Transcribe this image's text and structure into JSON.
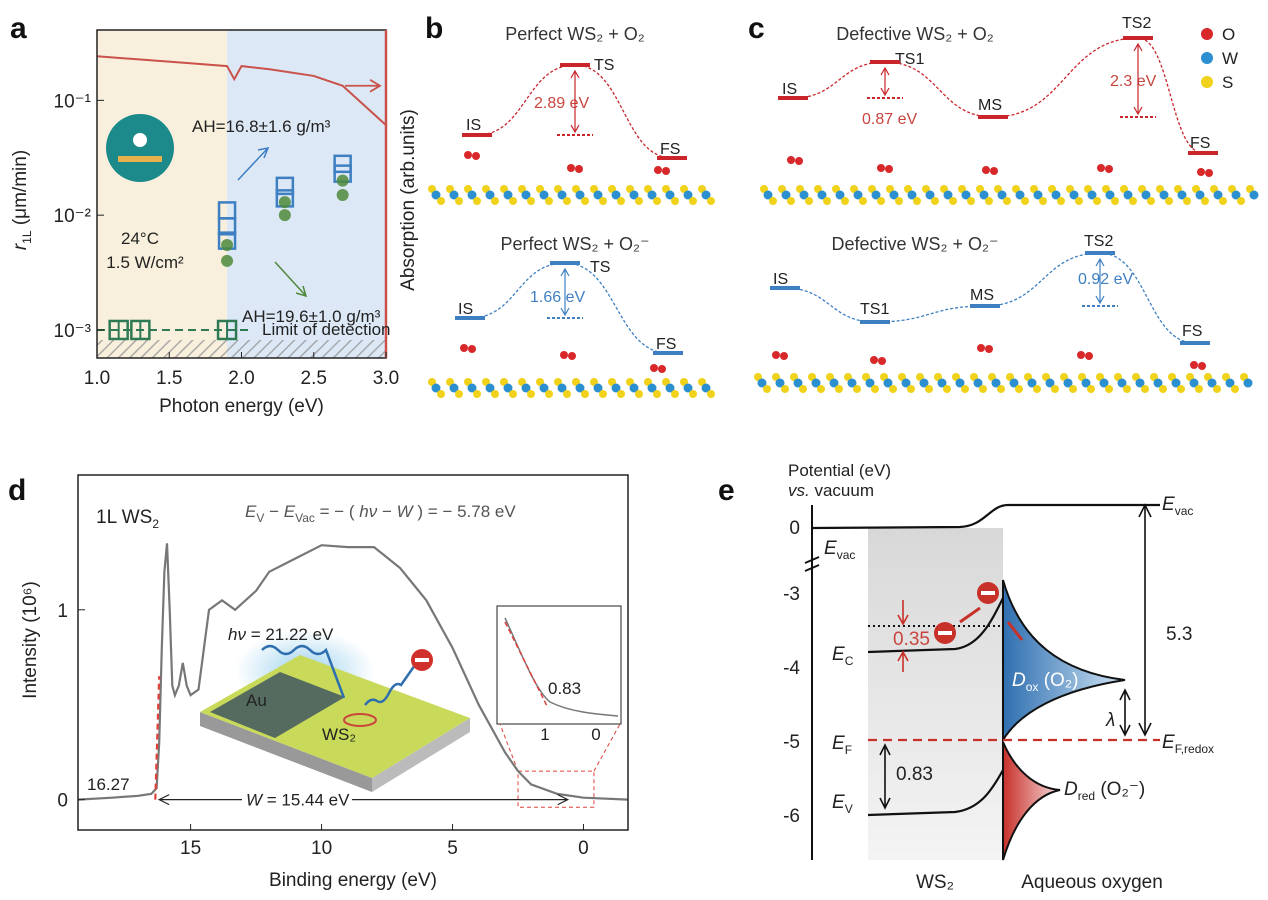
{
  "figure": {
    "panel_labels": [
      "a",
      "b",
      "c",
      "d",
      "e"
    ]
  },
  "chart_data": [
    {
      "type": "scatter",
      "x_label": "Photon energy (eV)",
      "y_label": [
        "r",
        "1L",
        " (μm/min)"
      ],
      "y2_label": "Absorption (arb.units)",
      "xlim": [
        1.0,
        3.0
      ],
      "xticks": [
        {
          "value": 1.0,
          "label": "1.0"
        },
        {
          "value": 1.5,
          "label": "1.5"
        },
        {
          "value": 2.0,
          "label": "2.0"
        },
        {
          "value": 2.5,
          "label": "2.5"
        },
        {
          "value": 3.0,
          "label": "3.0"
        }
      ],
      "log_y": true,
      "ylim": [
        0.00057,
        0.41
      ],
      "yticks": [
        {
          "value": 0.001,
          "label": "10⁻³"
        },
        {
          "value": 0.01,
          "label": "10⁻²"
        },
        {
          "value": 0.1,
          "label": "10⁻¹"
        }
      ],
      "y2lim": [
        0,
        1
      ],
      "shaded_regions": [
        {
          "from": 1.0,
          "to": 1.9,
          "color": "#f8f0dc"
        },
        {
          "from": 1.9,
          "to": 3.0,
          "color": "#dce8f6"
        }
      ],
      "series": [
        {
          "name": "AH=16.8±1.6 g/m³",
          "color": "#3e7fc2",
          "marker": "square",
          "x": [
            1.9,
            1.9,
            1.9,
            2.3,
            2.3,
            2.7,
            2.7
          ],
          "values": [
            0.011,
            0.008,
            0.006,
            0.018,
            0.014,
            0.028,
            0.023
          ]
        },
        {
          "name": "AH=19.6±1.0 g/m³",
          "color": "#4e8a3a",
          "marker": "circle",
          "x": [
            1.9,
            1.9,
            2.3,
            2.3,
            2.7,
            2.7
          ],
          "values": [
            0.0055,
            0.004,
            0.013,
            0.01,
            0.02,
            0.015
          ]
        },
        {
          "name": "Limit of detection",
          "color": "#2f7a55",
          "marker": "detection",
          "x": [
            1.15,
            1.3,
            1.9
          ],
          "values": [
            0.001,
            0.001,
            0.001
          ]
        },
        {
          "axis": "y2",
          "color": "#c9524a",
          "marker": "line",
          "x": [
            1.0,
            1.3,
            1.6,
            1.9,
            1.95,
            2.0,
            2.2,
            2.5,
            2.7,
            2.9,
            3.0
          ],
          "values": [
            0.92,
            0.91,
            0.9,
            0.89,
            0.85,
            0.89,
            0.88,
            0.86,
            0.83,
            0.75,
            0.71
          ]
        }
      ],
      "annotations": [
        "24°C",
        "1.5 W/cm²"
      ]
    },
    {
      "type": "line",
      "x_label": "Binding energy (eV)",
      "y_label": "Intensity (10⁶)",
      "xlim": [
        19.3,
        -1.7
      ],
      "xticks": [
        15,
        10,
        5,
        0
      ],
      "ylim": [
        -0.16,
        1.71
      ],
      "yticks": [
        0,
        1
      ],
      "series": [
        {
          "color": "#777777",
          "x": [
            19.3,
            18,
            17,
            16.5,
            16.3,
            16.2,
            16.1,
            16.0,
            15.9,
            15.8,
            15.7,
            15.6,
            15.45,
            15.3,
            15.15,
            15.0,
            14.7,
            14.3,
            13.8,
            13.3,
            12.5,
            12.0,
            11.0,
            10.0,
            9.0,
            8.0,
            7.0,
            6.0,
            5.0,
            4.0,
            3.0,
            2.5,
            2.0,
            1.0,
            0,
            -1.7
          ],
          "values": [
            0,
            0.01,
            0.02,
            0.03,
            0.06,
            0.3,
            0.8,
            1.2,
            1.35,
            1.0,
            0.6,
            0.55,
            0.6,
            0.72,
            0.6,
            0.55,
            0.58,
            1.0,
            1.05,
            1.0,
            1.1,
            1.2,
            1.27,
            1.34,
            1.33,
            1.33,
            1.22,
            1.05,
            0.8,
            0.5,
            0.25,
            0.15,
            0.08,
            0.03,
            0.01,
            0
          ]
        },
        {
          "color": "#e0413a",
          "dashed": true,
          "x": [
            16.35,
            16.2
          ],
          "values": [
            0,
            0.65
          ]
        }
      ],
      "annotations": {
        "sample": [
          "1L WS",
          "2"
        ],
        "equation": [
          "E",
          "V",
          " − ",
          "E",
          "Vac",
          " = − ( ",
          "hν",
          " − ",
          "W",
          " ) = − 5.78 eV"
        ],
        "cutoff": "16.27",
        "edge": "0.83",
        "width": [
          "W",
          " = 15.44 eV"
        ],
        "photon": [
          "hν",
          " = 21.22 eV"
        ],
        "au": "Au",
        "ws2": "WS₂",
        "inset_ticks": [
          "1",
          "0"
        ]
      }
    }
  ],
  "panel_b": {
    "top": {
      "title": "Perfect WS₂ + O₂",
      "states": [
        "IS",
        "TS",
        "FS"
      ],
      "barrier": "2.89 eV"
    },
    "bottom": {
      "title": "Perfect WS₂ + O₂⁻",
      "states": [
        "IS",
        "TS",
        "FS"
      ],
      "barrier": "1.66 eV"
    }
  },
  "panel_c": {
    "top": {
      "title": "Defective WS₂ + O₂",
      "states": [
        "IS",
        "TS1",
        "MS",
        "TS2",
        "FS"
      ],
      "barriers": [
        "0.87 eV",
        "2.3 eV"
      ]
    },
    "bottom": {
      "title": "Defective WS₂ + O₂⁻",
      "states": [
        "IS",
        "TS1",
        "MS",
        "TS2",
        "FS"
      ],
      "barrier": "0.92 eV"
    },
    "legend": [
      "O",
      "W",
      "S"
    ]
  },
  "panel_e": {
    "axis_title": [
      "Potential (eV)",
      "vs.",
      " vacuum"
    ],
    "ticks": [
      0,
      -3,
      -4,
      -5,
      -6
    ],
    "levels": {
      "evac_left": [
        "E",
        "vac"
      ],
      "evac_right": [
        "E",
        "vac"
      ],
      "ec": [
        "E",
        "C"
      ],
      "ef": [
        "E",
        "F"
      ],
      "ev": [
        "E",
        "V"
      ],
      "efredox": [
        "E",
        "F,redox"
      ]
    },
    "values": [
      "0.35",
      "0.83",
      "5.3",
      "λ"
    ],
    "dox": [
      "D",
      "ox",
      " (O₂)"
    ],
    "dred": [
      "D",
      "red",
      " (O₂⁻)"
    ],
    "labels": [
      "WS₂",
      "Aqueous oxygen"
    ]
  }
}
